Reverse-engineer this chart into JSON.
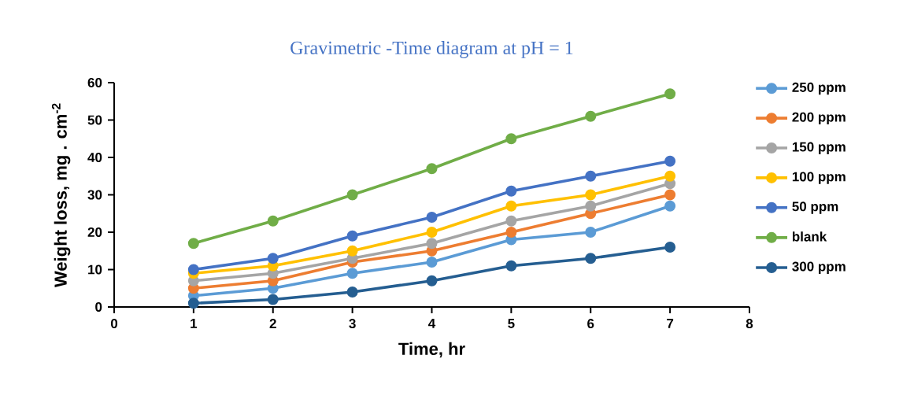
{
  "chart_data": {
    "type": "line",
    "title": "Gravimetric -Time diagram at pH = 1",
    "xlabel": "Time, hr",
    "ylabel": "Weight loss, mg . cm$^{-2}$",
    "x": [
      1,
      2,
      3,
      4,
      5,
      6,
      7
    ],
    "series": [
      {
        "name": "250 ppm",
        "color": "#5b9bd5",
        "values": [
          3,
          5,
          9,
          12,
          18,
          20,
          27
        ]
      },
      {
        "name": "200 ppm",
        "color": "#ed7d31",
        "values": [
          5,
          7,
          12,
          15,
          20,
          25,
          30
        ]
      },
      {
        "name": "150 ppm",
        "color": "#a5a5a5",
        "values": [
          7,
          9,
          13,
          17,
          23,
          27,
          33
        ]
      },
      {
        "name": "100 ppm",
        "color": "#ffc000",
        "values": [
          9,
          11,
          15,
          20,
          27,
          30,
          35
        ]
      },
      {
        "name": "50 ppm",
        "color": "#4472c4",
        "values": [
          10,
          13,
          19,
          24,
          31,
          35,
          39
        ]
      },
      {
        "name": "blank",
        "color": "#70ad47",
        "values": [
          17,
          23,
          30,
          37,
          45,
          51,
          57
        ]
      },
      {
        "name": "300 ppm",
        "color": "#255e91",
        "values": [
          1,
          2,
          4,
          7,
          11,
          13,
          16
        ]
      }
    ],
    "xlim": [
      0,
      8
    ],
    "ylim": [
      0,
      60
    ],
    "xticks": [
      0,
      1,
      2,
      3,
      4,
      5,
      6,
      7,
      8
    ],
    "yticks": [
      0,
      10,
      20,
      30,
      40,
      50,
      60
    ],
    "legend": "right",
    "marker": "circle",
    "line_style": "solid",
    "grid": false
  }
}
